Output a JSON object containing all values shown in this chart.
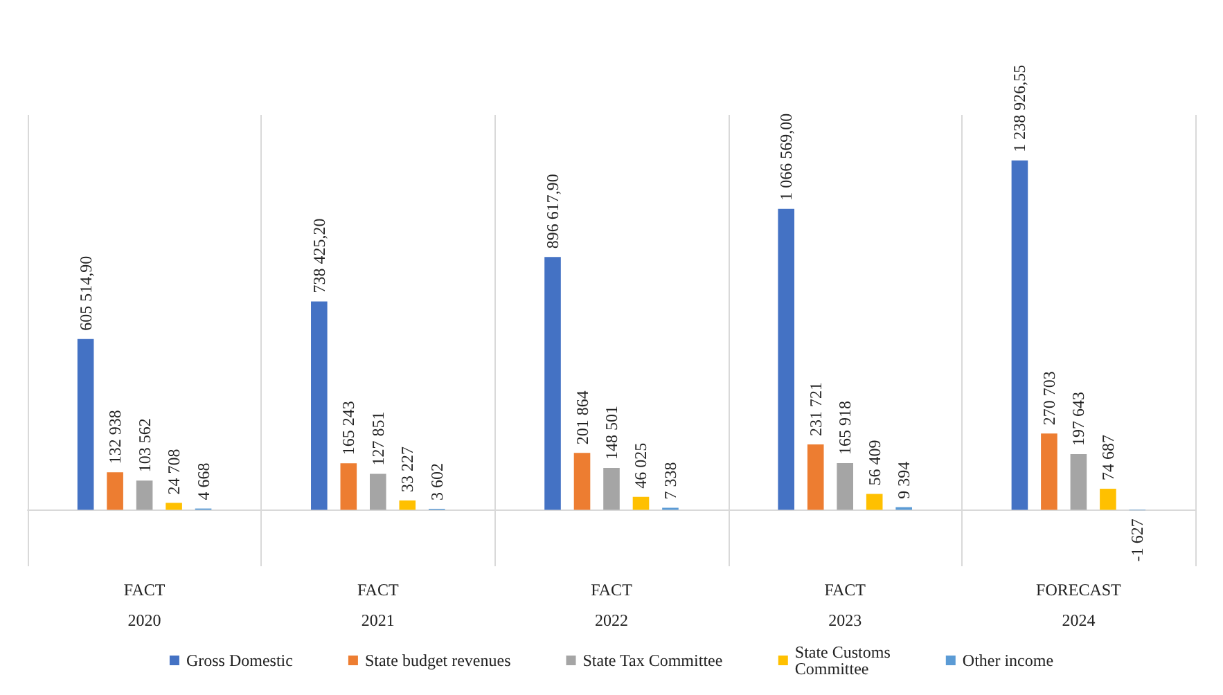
{
  "chart_data": {
    "type": "bar",
    "categories": [
      "FACT\n2020",
      "FACT\n2021",
      "FACT\n2022",
      "FACT\n2023",
      "FORECAST\n2024"
    ],
    "series": [
      {
        "name": "Gross Domestic",
        "color": "#4472c4",
        "values": [
          605514.9,
          738425.2,
          896617.9,
          1066569.0,
          1238926.55
        ],
        "value_labels": [
          "605 514,90",
          "738 425,20",
          "896 617,90",
          "1 066 569,00",
          "1 238 926,55"
        ]
      },
      {
        "name": "State budget revenues",
        "color": "#ed7d31",
        "values": [
          132938,
          165243,
          201864,
          231721,
          270703
        ],
        "value_labels": [
          "132 938",
          "165 243",
          "201 864",
          "231 721",
          "270 703"
        ]
      },
      {
        "name": "State Tax Committee",
        "color": "#a5a5a5",
        "values": [
          103562,
          127851,
          148501,
          165918,
          197643
        ],
        "value_labels": [
          "103 562",
          "127 851",
          "148 501",
          "165 918",
          "197 643"
        ]
      },
      {
        "name": "State Customs\nCommittee",
        "color": "#ffc000",
        "values": [
          24708,
          33227,
          46025,
          56409,
          74687
        ],
        "value_labels": [
          "24 708",
          "33 227",
          "46 025",
          "56 409",
          "74 687"
        ]
      },
      {
        "name": "Other income",
        "color": "#5b9bd5",
        "values": [
          4668,
          3602,
          7338,
          9394,
          -1627
        ],
        "value_labels": [
          "4 668",
          "3 602",
          "7 338",
          "9 394",
          "-1 627"
        ]
      }
    ],
    "legend": "bottom",
    "grid": "x",
    "tick_labels": "x"
  }
}
